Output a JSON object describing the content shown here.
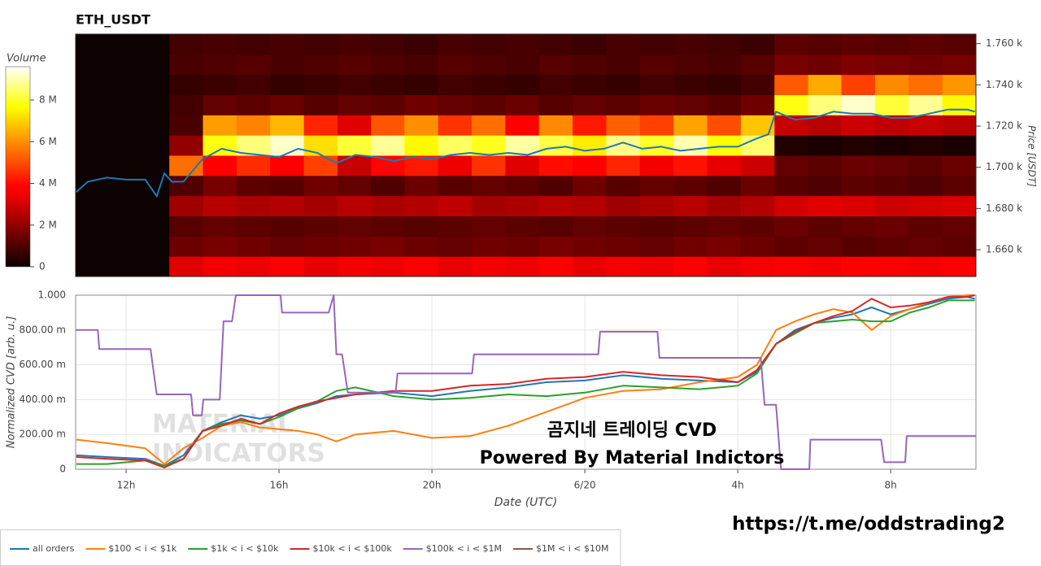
{
  "chart_data": [
    {
      "type": "heatmap",
      "title": "ETH_USDT",
      "y_label": "Price [USDT]",
      "colorbar_title": "Volume",
      "colorscale": "hot",
      "xlim": [
        10.68,
        34.23
      ],
      "ylim": [
        1647,
        1764.6
      ],
      "yticks": [
        {
          "value": 1660,
          "label": "1.660 k"
        },
        {
          "value": 1680,
          "label": "1.680 k"
        },
        {
          "value": 1700,
          "label": "1.700 k"
        },
        {
          "value": 1720,
          "label": "1.720 k"
        },
        {
          "value": 1740,
          "label": "1.740 k"
        },
        {
          "value": 1760,
          "label": "1.760 k"
        }
      ],
      "zlim": [
        0,
        9600000.0
      ],
      "zticks": [
        0,
        {
          "value": 2000000.0,
          "label": "2 M"
        },
        {
          "value": 4000000.0,
          "label": "4 M"
        },
        {
          "value": 6000000.0,
          "label": "6 M"
        },
        {
          "value": 8000000.0,
          "label": "8 M"
        }
      ],
      "x_edges": [
        13.13,
        14.01,
        14.89,
        15.77,
        16.65,
        17.53,
        18.41,
        19.28,
        20.16,
        21.04,
        21.92,
        22.8,
        23.68,
        24.56,
        25.44,
        26.32,
        27.2,
        28.08,
        28.96,
        29.84,
        30.71,
        31.59,
        32.47,
        33.35,
        34.23
      ],
      "price_edges": [
        1647,
        1656.8,
        1666.6,
        1676.4,
        1686.2,
        1696,
        1705.8,
        1715.6,
        1725.4,
        1735.2,
        1745,
        1754.8,
        1764.6
      ],
      "z": [
        [
          3200000.0,
          1400000.0,
          1100000.0,
          2200000.0,
          1000000.0,
          5500000.0,
          2000000.0,
          900000.0,
          800000.0,
          600000.0,
          900000.0,
          800000.0
        ],
        [
          3500000.0,
          1600000.0,
          1300000.0,
          2600000.0,
          1600000.0,
          3800000.0,
          7800000.0,
          6200000.0,
          1300000.0,
          700000.0,
          1000000.0,
          900000.0
        ],
        [
          3400000.0,
          1500000.0,
          1200000.0,
          2400000.0,
          1200000.0,
          4500000.0,
          8600000.0,
          5800000.0,
          1200000.0,
          800000.0,
          1100000.0,
          800000.0
        ],
        [
          3600000.0,
          1300000.0,
          1100000.0,
          2500000.0,
          1100000.0,
          3600000.0,
          9200000.0,
          6600000.0,
          1400000.0,
          600000.0,
          900000.0,
          900000.0
        ],
        [
          3300000.0,
          1400000.0,
          1200000.0,
          2300000.0,
          1500000.0,
          4800000.0,
          7200000.0,
          4400000.0,
          1100000.0,
          700000.0,
          1000000.0,
          800000.0
        ],
        [
          3500000.0,
          1500000.0,
          1300000.0,
          2600000.0,
          1300000.0,
          2800000.0,
          8100000.0,
          3200000.0,
          1300000.0,
          800000.0,
          1100000.0,
          900000.0
        ],
        [
          3400000.0,
          1600000.0,
          1200000.0,
          2400000.0,
          1000000.0,
          3900000.0,
          8800000.0,
          5100000.0,
          1200000.0,
          700000.0,
          1000000.0,
          800000.0
        ],
        [
          3600000.0,
          1400000.0,
          1100000.0,
          2500000.0,
          1400000.0,
          4200000.0,
          7600000.0,
          6000000.0,
          1500000.0,
          600000.0,
          900000.0,
          700000.0
        ],
        [
          3300000.0,
          1300000.0,
          1200000.0,
          2700000.0,
          1100000.0,
          3400000.0,
          8400000.0,
          4600000.0,
          1300000.0,
          800000.0,
          1100000.0,
          900000.0
        ],
        [
          3500000.0,
          1500000.0,
          1300000.0,
          2300000.0,
          1300000.0,
          4600000.0,
          7900000.0,
          5500000.0,
          1200000.0,
          700000.0,
          1000000.0,
          800000.0
        ],
        [
          3400000.0,
          1400000.0,
          1200000.0,
          2400000.0,
          1200000.0,
          3200000.0,
          8900000.0,
          3800000.0,
          1400000.0,
          600000.0,
          900000.0,
          900000.0
        ],
        [
          3600000.0,
          1600000.0,
          1100000.0,
          2600000.0,
          1000000.0,
          4000000.0,
          8200000.0,
          5900000.0,
          1100000.0,
          800000.0,
          1100000.0,
          800000.0
        ],
        [
          3300000.0,
          1500000.0,
          1300000.0,
          2500000.0,
          1500000.0,
          3700000.0,
          7400000.0,
          4200000.0,
          1300000.0,
          700000.0,
          1000000.0,
          700000.0
        ],
        [
          3500000.0,
          1400000.0,
          1200000.0,
          2200000.0,
          1100000.0,
          4400000.0,
          8700000.0,
          5300000.0,
          1200000.0,
          600000.0,
          900000.0,
          900000.0
        ],
        [
          3400000.0,
          1300000.0,
          1100000.0,
          2400000.0,
          1300000.0,
          3500000.0,
          8000000.0,
          4800000.0,
          1400000.0,
          800000.0,
          1100000.0,
          800000.0
        ],
        [
          3600000.0,
          1500000.0,
          1200000.0,
          2600000.0,
          1200000.0,
          4100000.0,
          9000000.0,
          6300000.0,
          1300000.0,
          700000.0,
          1000000.0,
          900000.0
        ],
        [
          3300000.0,
          1600000.0,
          1300000.0,
          2300000.0,
          1000000.0,
          3300000.0,
          7700000.0,
          5000000.0,
          1100000.0,
          600000.0,
          900000.0,
          800000.0
        ],
        [
          3500000.0,
          1400000.0,
          1200000.0,
          2500000.0,
          1400000.0,
          2900000.0,
          8500000.0,
          6800000.0,
          1500000.0,
          800000.0,
          1100000.0,
          700000.0
        ],
        [
          3600000.0,
          1200000.0,
          1400000.0,
          3000000.0,
          1100000.0,
          1300000.0,
          300000.0,
          2800000.0,
          7800000.0,
          5200000.0,
          1600000.0,
          1200000.0
        ],
        [
          3500000.0,
          1300000.0,
          1200000.0,
          3200000.0,
          1000000.0,
          1200000.0,
          200000.0,
          2600000.0,
          8600000.0,
          6400000.0,
          1500000.0,
          1100000.0
        ],
        [
          3700000.0,
          1100000.0,
          1300000.0,
          3100000.0,
          1200000.0,
          1400000.0,
          300000.0,
          2900000.0,
          9200000.0,
          4800000.0,
          1700000.0,
          1200000.0
        ],
        [
          3600000.0,
          1200000.0,
          1400000.0,
          2900000.0,
          1100000.0,
          1300000.0,
          200000.0,
          2700000.0,
          8100000.0,
          5900000.0,
          1600000.0,
          1100000.0
        ],
        [
          3500000.0,
          1300000.0,
          1200000.0,
          3000000.0,
          1000000.0,
          1200000.0,
          300000.0,
          2800000.0,
          8800000.0,
          5500000.0,
          1500000.0,
          1200000.0
        ],
        [
          3700000.0,
          1200000.0,
          1300000.0,
          3100000.0,
          1200000.0,
          1400000.0,
          200000.0,
          2600000.0,
          7600000.0,
          6100000.0,
          1600000.0,
          1100000.0
        ]
      ],
      "price_line": {
        "color": "#1f77b4",
        "x": [
          10.7,
          11,
          11.5,
          12,
          12.5,
          12.8,
          13,
          13.2,
          13.5,
          14,
          14.5,
          15,
          15.5,
          16,
          16.5,
          17,
          17.5,
          18,
          18.5,
          19,
          19.5,
          20,
          20.5,
          21,
          21.5,
          22,
          22.5,
          23,
          23.5,
          24,
          24.5,
          25,
          25.5,
          26,
          26.5,
          27,
          27.5,
          28,
          28.5,
          28.8,
          29,
          29.5,
          30,
          30.5,
          31,
          31.5,
          32,
          32.5,
          33,
          33.5,
          34,
          34.2
        ],
        "values": [
          1688,
          1693,
          1695,
          1694,
          1694,
          1686,
          1697,
          1693,
          1693,
          1704,
          1709,
          1707,
          1706,
          1705,
          1709,
          1707,
          1702,
          1706,
          1705,
          1703,
          1705,
          1704,
          1706,
          1707,
          1706,
          1707,
          1706,
          1709,
          1710,
          1708,
          1709,
          1712,
          1709,
          1710,
          1708,
          1709,
          1710,
          1710,
          1714,
          1716,
          1727,
          1723,
          1724,
          1727,
          1726,
          1726,
          1724,
          1724,
          1726,
          1728,
          1728,
          1727
        ]
      }
    },
    {
      "type": "line",
      "x_label": "Date (UTC)",
      "y_label": "Normalized CVD [arb. u.]",
      "grid": true,
      "legend": "bottom",
      "xlim": [
        10.68,
        34.23
      ],
      "ylim": [
        0,
        1
      ],
      "xticks": [
        {
          "value": 12,
          "label": "12h"
        },
        {
          "value": 16,
          "label": "16h"
        },
        {
          "value": 20,
          "label": "20h"
        },
        {
          "value": 24,
          "label": "6/20"
        },
        {
          "value": 28,
          "label": "4h"
        },
        {
          "value": 32,
          "label": "8h"
        }
      ],
      "yticks": [
        0,
        {
          "value": 0.2,
          "label": "200.00 m"
        },
        {
          "value": 0.4,
          "label": "400.00 m"
        },
        {
          "value": 0.6,
          "label": "600.00 m"
        },
        {
          "value": 0.8,
          "label": "800.00 m"
        },
        {
          "value": 1,
          "label": "1.000"
        }
      ],
      "annotations": [
        "곰지네 트레이딩 CVD",
        "Powered By Material Indictors",
        "https://t.me/oddstrading2"
      ],
      "watermark": [
        "MATERIAL",
        "INDICATORS"
      ],
      "x": [
        10.7,
        11.5,
        12.5,
        13,
        13.5,
        14,
        14.5,
        15,
        15.5,
        16,
        16.5,
        17,
        17.5,
        18,
        19,
        20,
        21,
        22,
        23,
        24,
        25,
        26,
        27,
        28,
        28.5,
        29,
        29.5,
        30,
        30.5,
        31,
        31.5,
        32,
        32.5,
        33,
        33.5,
        34,
        34.2
      ],
      "series": [
        {
          "name": "all orders",
          "color": "#1f77b4",
          "values": [
            0.08,
            0.07,
            0.06,
            0.02,
            0.08,
            0.22,
            0.27,
            0.31,
            0.29,
            0.31,
            0.35,
            0.38,
            0.42,
            0.43,
            0.44,
            0.42,
            0.45,
            0.47,
            0.5,
            0.51,
            0.54,
            0.52,
            0.51,
            0.5,
            0.56,
            0.72,
            0.8,
            0.84,
            0.87,
            0.89,
            0.93,
            0.89,
            0.92,
            0.95,
            0.98,
            0.99,
            0.98
          ]
        },
        {
          "name": "$100 < i < $1k",
          "color": "#ff7f0e",
          "values": [
            0.17,
            0.15,
            0.12,
            0.03,
            0.12,
            0.18,
            0.25,
            0.27,
            0.24,
            0.23,
            0.22,
            0.2,
            0.16,
            0.2,
            0.22,
            0.18,
            0.19,
            0.25,
            0.33,
            0.41,
            0.45,
            0.46,
            0.5,
            0.53,
            0.6,
            0.8,
            0.85,
            0.89,
            0.92,
            0.9,
            0.8,
            0.88,
            0.92,
            0.96,
            0.99,
            1.0,
            1.0
          ]
        },
        {
          "name": "$1k < i < $10k",
          "color": "#2ca02c",
          "values": [
            0.03,
            0.03,
            0.05,
            0.02,
            0.06,
            0.22,
            0.26,
            0.28,
            0.26,
            0.3,
            0.35,
            0.39,
            0.45,
            0.47,
            0.42,
            0.4,
            0.41,
            0.43,
            0.42,
            0.44,
            0.48,
            0.47,
            0.46,
            0.48,
            0.55,
            0.72,
            0.78,
            0.84,
            0.85,
            0.86,
            0.85,
            0.85,
            0.9,
            0.93,
            0.97,
            0.97,
            0.97
          ]
        },
        {
          "name": "$10k < i < $100k",
          "color": "#d62728",
          "values": [
            0.07,
            0.06,
            0.05,
            0.01,
            0.06,
            0.22,
            0.25,
            0.29,
            0.26,
            0.32,
            0.36,
            0.39,
            0.41,
            0.43,
            0.45,
            0.45,
            0.48,
            0.49,
            0.52,
            0.53,
            0.56,
            0.54,
            0.53,
            0.5,
            0.57,
            0.72,
            0.79,
            0.84,
            0.88,
            0.91,
            0.98,
            0.93,
            0.94,
            0.96,
            0.99,
            0.99,
            1.0
          ]
        },
        {
          "name": "$100k < i < $1M",
          "color": "#9467bd",
          "x": [
            10.68,
            11.26,
            11.3,
            12.64,
            12.8,
            13.7,
            13.75,
            13.98,
            14.02,
            14.45,
            14.55,
            14.77,
            14.87,
            16.04,
            16.08,
            17.3,
            17.43,
            17.5,
            17.65,
            17.8,
            19.05,
            19.1,
            21.05,
            21.1,
            24.35,
            24.4,
            25.9,
            25.95,
            28.6,
            28.7,
            29.0,
            29.13,
            29.87,
            29.9,
            31.75,
            31.83,
            32.38,
            32.42,
            34.23
          ],
          "values": [
            0.8,
            0.8,
            0.69,
            0.69,
            0.43,
            0.43,
            0.31,
            0.31,
            0.4,
            0.4,
            0.85,
            0.85,
            1.0,
            1.0,
            0.9,
            0.9,
            1.0,
            0.66,
            0.66,
            0.44,
            0.44,
            0.55,
            0.55,
            0.66,
            0.66,
            0.79,
            0.79,
            0.64,
            0.64,
            0.37,
            0.37,
            0,
            0,
            0.17,
            0.17,
            0.04,
            0.04,
            0.19,
            0.19
          ]
        },
        {
          "name": "$1M < i < $10M",
          "color": "#8c564b",
          "values": [
            null,
            null,
            null,
            null,
            null,
            null,
            null,
            null,
            null,
            null,
            null,
            null,
            null,
            null,
            null,
            null,
            null,
            null,
            null,
            null,
            null,
            null,
            null,
            null,
            null,
            null,
            null,
            null,
            null,
            null,
            null,
            null,
            null,
            null,
            null,
            null,
            null
          ]
        }
      ]
    }
  ]
}
